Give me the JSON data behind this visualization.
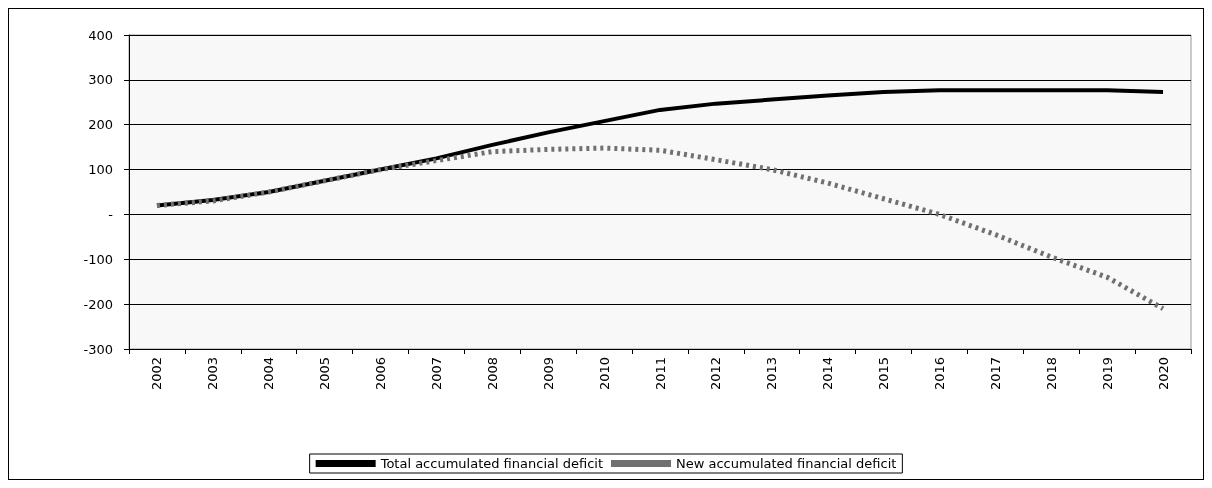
{
  "chart_data": {
    "type": "line",
    "categories": [
      "2002",
      "2003",
      "2004",
      "2005",
      "2006",
      "2007",
      "2008",
      "2009",
      "2010",
      "2011",
      "2012",
      "2013",
      "2014",
      "2015",
      "2016",
      "2017",
      "2018",
      "2019",
      "2020"
    ],
    "series": [
      {
        "name": "Total accumulated financial deficit",
        "color": "#000000",
        "line_style": "solid",
        "values": [
          20,
          32,
          50,
          75,
          100,
          125,
          155,
          183,
          208,
          233,
          247,
          256,
          265,
          273,
          277,
          277,
          277,
          277,
          273
        ]
      },
      {
        "name": "New accumulated financial deficit",
        "color": "#707070",
        "line_style": "dashed",
        "values": [
          20,
          30,
          50,
          75,
          100,
          120,
          140,
          145,
          148,
          143,
          122,
          100,
          70,
          35,
          0,
          -45,
          -95,
          -140,
          -210
        ]
      }
    ],
    "ylim": [
      -300,
      400
    ],
    "yticks": [
      -300,
      -200,
      -100,
      {
        "value": 0,
        "label": "-"
      },
      100,
      200,
      300,
      400
    ],
    "grid": "y",
    "legend": "bottom",
    "marker": "none"
  }
}
